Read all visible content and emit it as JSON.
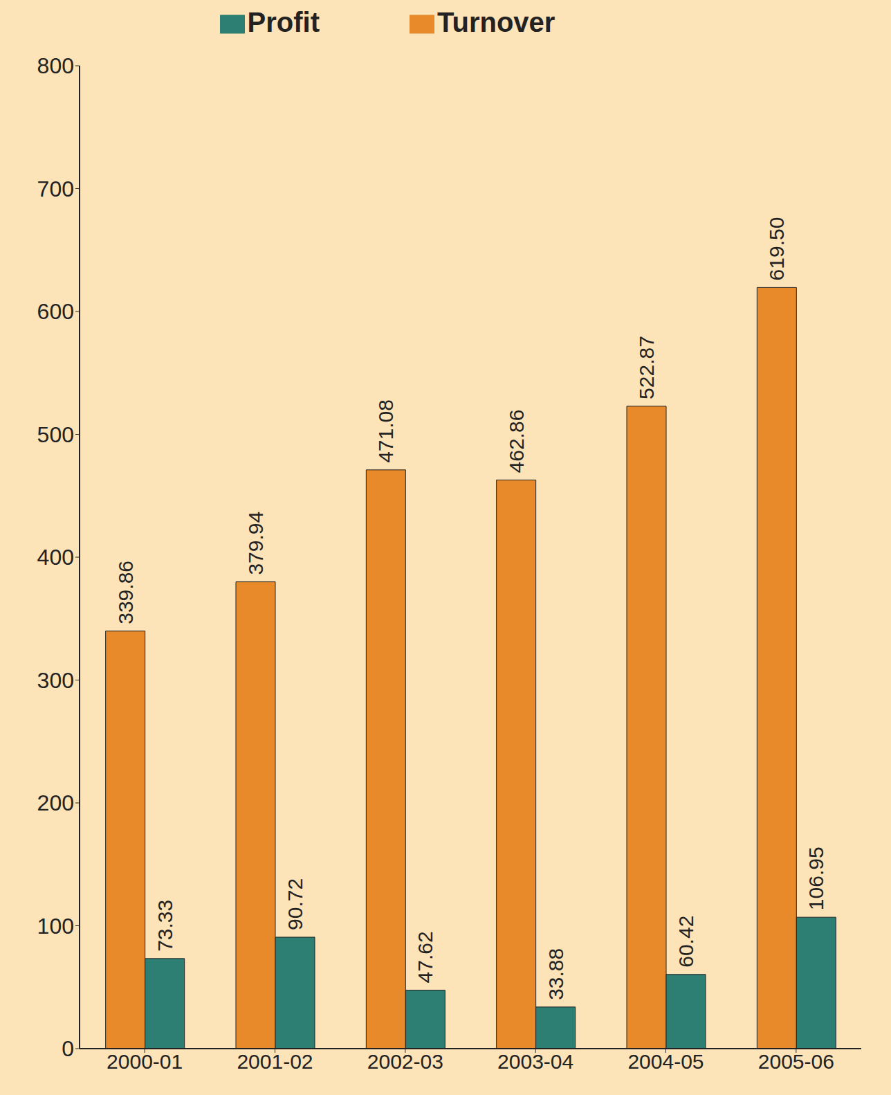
{
  "chart_data": {
    "type": "bar",
    "categories": [
      "2000-01",
      "2001-02",
      "2002-03",
      "2003-04",
      "2004-05",
      "2005-06"
    ],
    "series": [
      {
        "name": "Turnover",
        "color": "#e8892a",
        "values": [
          339.86,
          379.94,
          471.08,
          462.86,
          522.87,
          619.5
        ],
        "value_labels": [
          "339.86",
          "379.94",
          "471.08",
          "462.86",
          "522.87",
          "619.50"
        ]
      },
      {
        "name": "Profit",
        "color": "#2e7f73",
        "values": [
          73.33,
          90.72,
          47.62,
          33.88,
          60.42,
          106.95
        ],
        "value_labels": [
          "73.33",
          "90.72",
          "47.62",
          "33.88",
          "60.42",
          "106.95"
        ]
      }
    ],
    "ylim": [
      0,
      800
    ],
    "yticks": [
      0,
      100,
      200,
      300,
      400,
      500,
      600,
      700,
      800
    ],
    "grid": false,
    "legend": "top",
    "data_labels": true
  }
}
